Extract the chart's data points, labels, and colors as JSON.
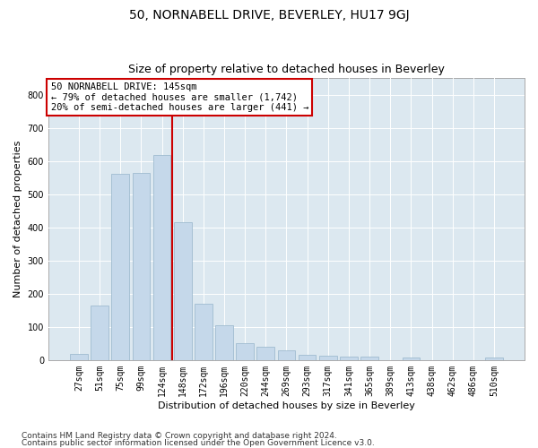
{
  "title": "50, NORNABELL DRIVE, BEVERLEY, HU17 9GJ",
  "subtitle": "Size of property relative to detached houses in Beverley",
  "xlabel": "Distribution of detached houses by size in Beverley",
  "ylabel": "Number of detached properties",
  "bar_labels": [
    "27sqm",
    "51sqm",
    "75sqm",
    "99sqm",
    "124sqm",
    "148sqm",
    "172sqm",
    "196sqm",
    "220sqm",
    "244sqm",
    "269sqm",
    "293sqm",
    "317sqm",
    "341sqm",
    "365sqm",
    "389sqm",
    "413sqm",
    "438sqm",
    "462sqm",
    "486sqm",
    "510sqm"
  ],
  "bar_values": [
    18,
    165,
    560,
    565,
    618,
    415,
    170,
    105,
    52,
    40,
    30,
    15,
    14,
    10,
    10,
    0,
    8,
    0,
    0,
    0,
    7
  ],
  "bar_color": "#c5d8ea",
  "bar_edgecolor": "#a0bcd0",
  "background_color": "#ffffff",
  "plot_bg_color": "#dce8f0",
  "grid_color": "#ffffff",
  "vline_x": 4.5,
  "vline_color": "#cc0000",
  "annotation_title": "50 NORNABELL DRIVE: 145sqm",
  "annotation_line1": "← 79% of detached houses are smaller (1,742)",
  "annotation_line2": "20% of semi-detached houses are larger (441) →",
  "annotation_box_color": "#cc0000",
  "ylim": [
    0,
    850
  ],
  "yticks": [
    0,
    100,
    200,
    300,
    400,
    500,
    600,
    700,
    800
  ],
  "footnote1": "Contains HM Land Registry data © Crown copyright and database right 2024.",
  "footnote2": "Contains public sector information licensed under the Open Government Licence v3.0.",
  "title_fontsize": 10,
  "subtitle_fontsize": 9,
  "axis_label_fontsize": 8,
  "tick_fontsize": 7,
  "annotation_fontsize": 7.5,
  "footnote_fontsize": 6.5
}
